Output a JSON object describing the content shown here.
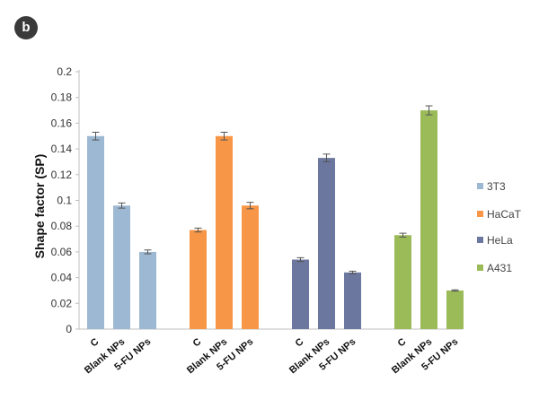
{
  "panel_label": "b",
  "chart_data": {
    "type": "bar",
    "title": "",
    "ylabel": "Shape factor (SP)",
    "xlabel": "",
    "ylim": [
      0,
      0.2
    ],
    "yticks": [
      "0",
      "0.02",
      "0.04",
      "0.06",
      "0.08",
      "0.1",
      "0.12",
      "0.14",
      "0.16",
      "0.18",
      "0.2"
    ],
    "grid": false,
    "legend_position": "right",
    "categories": [
      "C",
      "Blank NPs",
      "5-FU NPs"
    ],
    "series": [
      {
        "name": "3T3",
        "color": "#9db8d2",
        "values": [
          0.15,
          0.096,
          0.06
        ],
        "errors": [
          0.003,
          0.002,
          0.0015
        ]
      },
      {
        "name": "HaCaT",
        "color": "#f79646",
        "values": [
          0.077,
          0.15,
          0.096
        ],
        "errors": [
          0.0015,
          0.003,
          0.0025
        ]
      },
      {
        "name": "HeLa",
        "color": "#6b779e",
        "values": [
          0.054,
          0.133,
          0.044
        ],
        "errors": [
          0.0015,
          0.003,
          0.001
        ]
      },
      {
        "name": "A431",
        "color": "#9bbb59",
        "values": [
          0.073,
          0.17,
          0.03
        ],
        "errors": [
          0.0015,
          0.0035,
          0.0005
        ]
      }
    ]
  }
}
